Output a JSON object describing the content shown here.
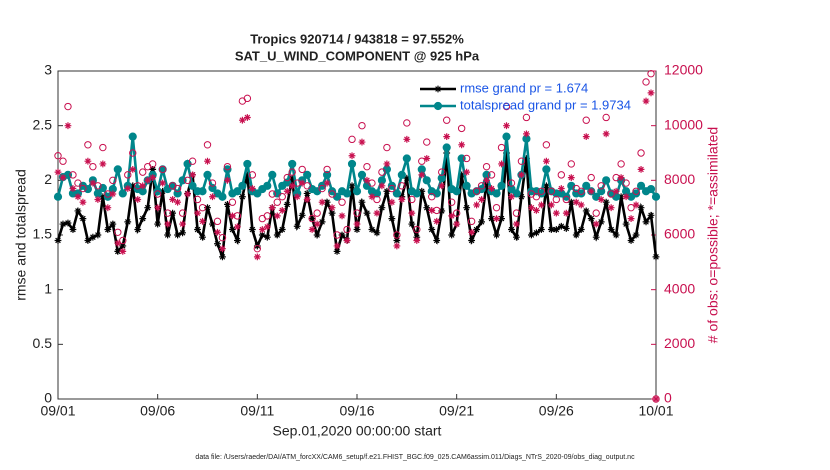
{
  "chart_data": {
    "type": "line",
    "title": "Tropics 920714 / 943818 = 97.552%",
    "subtitle": "SAT_U_WIND_COMPONENT @ 925 hPa",
    "xlabel": "Sep.01,2020 00:00:00 start",
    "ylabel": "rmse and totalspread",
    "y2label": "# of obs: o=possible; *=assimilated",
    "footnote": "data file: /Users/raeder/DAI/ATM_forcXX/CAM6_setup/f.e21.FHIST_BGC.f09_025.CAM6assim.011/Diags_NTrS_2020-09/obs_diag_output.nc",
    "xlim": [
      0,
      30
    ],
    "xticks": [
      {
        "value": 0,
        "label": "09/01"
      },
      {
        "value": 5,
        "label": "09/06"
      },
      {
        "value": 10,
        "label": "09/11"
      },
      {
        "value": 15,
        "label": "09/16"
      },
      {
        "value": 20,
        "label": "09/21"
      },
      {
        "value": 25,
        "label": "09/26"
      },
      {
        "value": 30,
        "label": "10/01"
      }
    ],
    "ylim": [
      0,
      3
    ],
    "yticks": [
      0,
      0.5,
      1,
      1.5,
      2,
      2.5,
      3
    ],
    "y2lim": [
      0,
      12000
    ],
    "y2ticks": [
      0,
      2000,
      4000,
      6000,
      8000,
      10000,
      12000
    ],
    "y2color": "#c8104f",
    "grid": false,
    "legend": "top-right",
    "x": [
      0,
      0.25,
      0.5,
      0.75,
      1,
      1.25,
      1.5,
      1.75,
      2,
      2.25,
      2.5,
      2.75,
      3,
      3.25,
      3.5,
      3.75,
      4,
      4.25,
      4.5,
      4.75,
      5,
      5.25,
      5.5,
      5.75,
      6,
      6.25,
      6.5,
      6.75,
      7,
      7.25,
      7.5,
      7.75,
      8,
      8.25,
      8.5,
      8.75,
      9,
      9.25,
      9.5,
      9.75,
      10,
      10.25,
      10.5,
      10.75,
      11,
      11.25,
      11.5,
      11.75,
      12,
      12.25,
      12.5,
      12.75,
      13,
      13.25,
      13.5,
      13.75,
      14,
      14.25,
      14.5,
      14.75,
      15,
      15.25,
      15.5,
      15.75,
      16,
      16.25,
      16.5,
      16.75,
      17,
      17.25,
      17.5,
      17.75,
      18,
      18.25,
      18.5,
      18.75,
      19,
      19.25,
      19.5,
      19.75,
      20,
      20.25,
      20.5,
      20.75,
      21,
      21.25,
      21.5,
      21.75,
      22,
      22.25,
      22.5,
      22.75,
      23,
      23.25,
      23.5,
      23.75,
      24,
      24.25,
      24.5,
      24.75,
      25,
      25.25,
      25.5,
      25.75,
      26,
      26.25,
      26.5,
      26.75,
      27,
      27.25,
      27.5,
      27.75,
      28,
      28.25,
      28.5,
      28.75,
      29,
      29.25,
      29.5,
      29.75,
      30
    ],
    "series": [
      {
        "name": "rmse grand pr = 1.674",
        "color": "#000000",
        "marker": "asterisk",
        "line": true,
        "values": [
          1.45,
          1.6,
          1.61,
          1.55,
          1.72,
          1.65,
          1.45,
          1.48,
          1.5,
          1.85,
          1.55,
          1.6,
          1.35,
          1.4,
          1.62,
          1.95,
          1.55,
          1.65,
          1.75,
          2.1,
          1.6,
          1.9,
          1.5,
          1.7,
          1.5,
          1.52,
          1.88,
          2.05,
          1.55,
          1.48,
          1.75,
          1.6,
          1.42,
          1.3,
          1.78,
          1.55,
          1.45,
          1.85,
          2.05,
          1.55,
          1.4,
          1.5,
          1.48,
          1.75,
          1.5,
          1.55,
          1.78,
          2.02,
          1.58,
          1.68,
          1.88,
          1.65,
          1.5,
          1.62,
          1.8,
          1.7,
          1.35,
          1.5,
          1.45,
          1.95,
          1.55,
          1.8,
          1.7,
          1.55,
          1.52,
          1.75,
          1.9,
          1.65,
          1.45,
          1.85,
          2.02,
          1.6,
          1.48,
          1.9,
          1.75,
          1.55,
          1.45,
          1.72,
          2.25,
          1.5,
          1.6,
          2.05,
          1.75,
          1.45,
          1.55,
          1.62,
          1.98,
          1.65,
          1.5,
          1.65,
          2.25,
          1.55,
          1.48,
          1.85,
          2.2,
          1.5,
          1.52,
          1.55,
          1.95,
          1.55,
          1.55,
          1.58,
          1.56,
          1.8,
          1.5,
          1.55,
          1.72,
          1.65,
          1.48,
          1.62,
          1.8,
          1.55,
          1.5,
          1.85,
          1.6,
          1.45,
          1.5,
          1.75,
          1.62,
          1.68,
          1.3
        ]
      },
      {
        "name": "totalspread grand pr = 1.9734",
        "color": "#00868b",
        "marker": "circle",
        "line": true,
        "values": [
          1.85,
          2.03,
          2.05,
          1.88,
          1.88,
          1.95,
          1.92,
          2.0,
          1.88,
          1.93,
          1.85,
          1.92,
          2.1,
          1.88,
          1.95,
          2.4,
          1.92,
          1.9,
          2.0,
          2.05,
          1.9,
          2.1,
          1.92,
          1.95,
          1.88,
          2.0,
          2.15,
          1.95,
          1.9,
          1.9,
          2.05,
          1.93,
          1.88,
          1.85,
          2.1,
          1.88,
          1.9,
          1.95,
          2.15,
          1.9,
          1.88,
          1.92,
          1.95,
          2.05,
          1.88,
          1.95,
          1.98,
          2.15,
          1.88,
          2.0,
          2.05,
          1.92,
          1.9,
          1.95,
          2.05,
          1.9,
          1.85,
          1.9,
          1.88,
          2.15,
          1.9,
          2.05,
          1.95,
          1.9,
          1.88,
          2.0,
          2.1,
          1.95,
          1.88,
          2.05,
          2.2,
          1.9,
          1.88,
          2.1,
          2.0,
          1.9,
          1.88,
          2.02,
          2.3,
          1.92,
          1.9,
          2.2,
          1.95,
          1.88,
          1.9,
          1.92,
          2.05,
          1.9,
          1.88,
          1.95,
          2.4,
          1.92,
          1.88,
          2.05,
          2.38,
          1.9,
          1.9,
          1.88,
          2.1,
          1.9,
          1.88,
          1.88,
          1.85,
          1.95,
          1.88,
          1.88,
          1.95,
          1.9,
          1.85,
          1.9,
          2.0,
          1.88,
          1.85,
          2.0,
          1.9,
          1.85,
          1.88,
          1.95,
          1.9,
          1.92,
          1.85
        ]
      },
      {
        "color": "#c8104f",
        "marker": "open-circle",
        "line": false,
        "axis": "y2",
        "values": [
          8900,
          8700,
          10700,
          8200,
          7900,
          7700,
          9300,
          8500,
          7800,
          9200,
          7500,
          8000,
          6100,
          5800,
          8200,
          9000,
          7800,
          8300,
          8500,
          8600,
          7500,
          8400,
          6800,
          7800,
          7700,
          6800,
          8000,
          8700,
          7300,
          7000,
          9300,
          7900,
          6500,
          5900,
          8500,
          7200,
          6700,
          10900,
          11000,
          8200,
          5500,
          6600,
          6700,
          7500,
          7200,
          7400,
          8100,
          8300,
          7900,
          8400,
          7800,
          6600,
          6800,
          7700,
          8400,
          7500,
          6000,
          7200,
          6200,
          9500,
          6800,
          10000,
          8500,
          7900,
          7300,
          8300,
          9200,
          7700,
          6000,
          7800,
          10100,
          7300,
          6200,
          8700,
          9400,
          7400,
          6900,
          8300,
          10200,
          7200,
          6800,
          9900,
          8800,
          6500,
          7600,
          7800,
          8500,
          8200,
          7000,
          9200,
          10700,
          7900,
          6800,
          8700,
          10300,
          7500,
          7400,
          7600,
          9300,
          7600,
          7300,
          8200,
          7300,
          8600,
          7700,
          7600,
          10200,
          8100,
          6800,
          7800,
          10300,
          7500,
          8100,
          8600,
          7900,
          7000,
          7600,
          9000,
          11600,
          11900,
          0
        ]
      },
      {
        "color": "#c8104f",
        "marker": "asterisk",
        "line": false,
        "axis": "y2",
        "values": [
          8300,
          8100,
          10000,
          7700,
          7400,
          7200,
          8700,
          7900,
          7300,
          8600,
          7000,
          7500,
          5700,
          5400,
          7700,
          8400,
          7300,
          7800,
          8000,
          8100,
          7000,
          7900,
          6400,
          7300,
          7200,
          6400,
          7500,
          8200,
          6800,
          6500,
          8700,
          7400,
          6100,
          5500,
          8000,
          6700,
          6300,
          10200,
          10300,
          7700,
          5200,
          6200,
          6300,
          7000,
          6700,
          6900,
          7600,
          7800,
          7400,
          7900,
          7300,
          6200,
          6400,
          7200,
          7900,
          7000,
          5600,
          6700,
          5800,
          8900,
          6400,
          9400,
          8000,
          7400,
          6800,
          7800,
          8600,
          7200,
          5600,
          7300,
          9500,
          6800,
          5800,
          8200,
          8800,
          6900,
          6500,
          7800,
          9600,
          6700,
          6400,
          9300,
          8300,
          6100,
          7100,
          7300,
          8000,
          7700,
          6600,
          8600,
          10000,
          7400,
          6400,
          8200,
          9700,
          7000,
          6900,
          7100,
          8700,
          7100,
          6800,
          7700,
          6800,
          8100,
          7200,
          7100,
          9600,
          7600,
          6400,
          7300,
          9700,
          7000,
          7600,
          8100,
          7400,
          6600,
          7100,
          8400,
          10900,
          11200,
          0
        ]
      }
    ]
  }
}
